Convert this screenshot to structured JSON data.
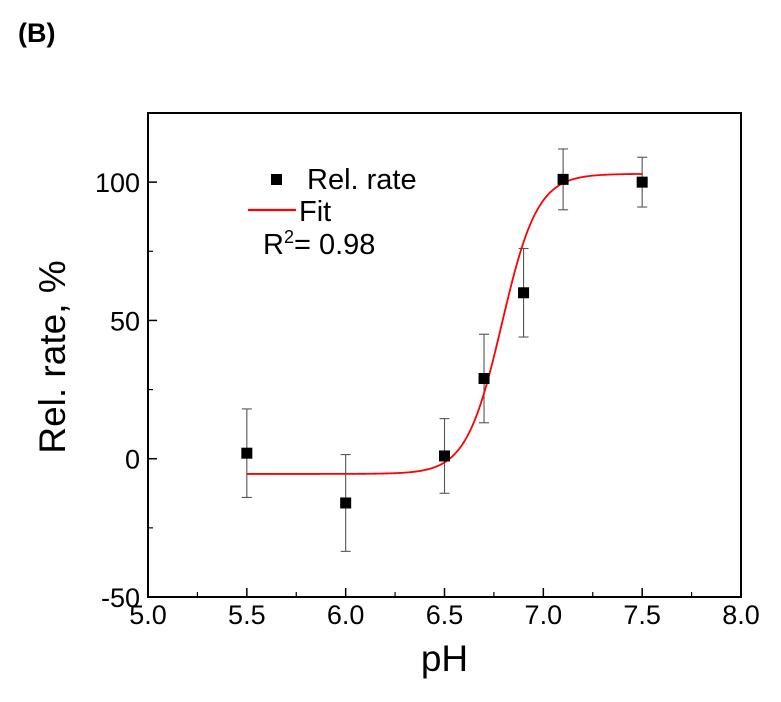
{
  "panel_label": "(B)",
  "chart_data": {
    "type": "scatter",
    "xlabel": "pH",
    "ylabel": "Rel. rate, %",
    "xlim": [
      5.0,
      8.0
    ],
    "ylim": [
      -50,
      125
    ],
    "x_ticks": [
      5.0,
      5.5,
      6.0,
      6.5,
      7.0,
      7.5,
      8.0
    ],
    "x_tick_labels": [
      "5.0",
      "5.5",
      "6.0",
      "6.5",
      "7.0",
      "7.5",
      "8.0"
    ],
    "y_ticks": [
      -50,
      0,
      50,
      100
    ],
    "y_tick_labels": [
      "-50",
      "0",
      "50",
      "100"
    ],
    "grid": false,
    "legend_position": "top-left",
    "series": [
      {
        "name": "Rel. rate",
        "kind": "scatter",
        "marker": "square",
        "color": "#000000",
        "x": [
          5.5,
          6.0,
          6.5,
          6.7,
          6.9,
          7.1,
          7.5
        ],
        "y": [
          2,
          -16,
          1,
          29,
          60,
          101,
          100
        ],
        "error": [
          16,
          17.5,
          13.5,
          16,
          16,
          11,
          9
        ]
      },
      {
        "name": "Fit",
        "kind": "line",
        "color": "#ff0000",
        "model": "sigmoid",
        "bottom": -5.5,
        "top": 103,
        "x0": 6.79,
        "slope": 0.09
      }
    ],
    "annotation": {
      "prefix": "R",
      "superscript": "2",
      "suffix": "= 0.98"
    }
  }
}
